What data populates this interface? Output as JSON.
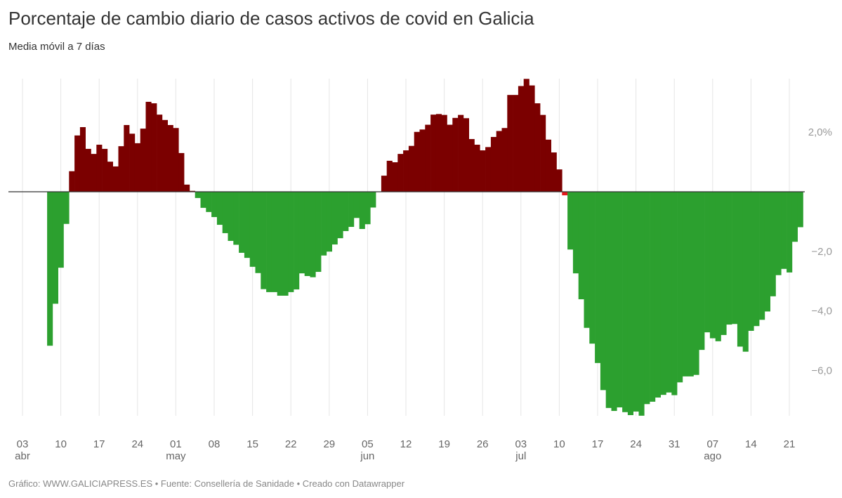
{
  "title": "Porcentaje de cambio diario de casos activos de covid en Galicia",
  "subtitle": "Media móvil a 7 días",
  "footer": "Gráfico: WWW.GALICIAPRESS.ES • Fuente: Consellería de Sanidade • Creado con Datawrapper",
  "colors": {
    "positive": "#7b0000",
    "negative": "#2ca02f",
    "near_zero": "#e31a1c",
    "grid": "#e5e5e5",
    "zero_line": "#333333"
  },
  "chart_data": {
    "type": "bar",
    "title": "Porcentaje de cambio diario de casos activos de covid en Galicia",
    "subtitle": "Media móvil a 7 días",
    "xlabel": "",
    "ylabel": "",
    "ylim": [
      -7.6,
      3.8
    ],
    "grid": true,
    "x_start": "08 abr",
    "x_axis_start_day_offset": 5,
    "x_ticks": [
      {
        "day": 0,
        "label": "03",
        "month": "abr"
      },
      {
        "day": 7,
        "label": "10"
      },
      {
        "day": 14,
        "label": "17"
      },
      {
        "day": 21,
        "label": "24"
      },
      {
        "day": 28,
        "label": "01",
        "month": "may"
      },
      {
        "day": 35,
        "label": "08"
      },
      {
        "day": 42,
        "label": "15"
      },
      {
        "day": 49,
        "label": "22"
      },
      {
        "day": 56,
        "label": "29"
      },
      {
        "day": 63,
        "label": "05",
        "month": "jun"
      },
      {
        "day": 70,
        "label": "12"
      },
      {
        "day": 77,
        "label": "19"
      },
      {
        "day": 84,
        "label": "26"
      },
      {
        "day": 91,
        "label": "03",
        "month": "jul"
      },
      {
        "day": 98,
        "label": "10"
      },
      {
        "day": 105,
        "label": "17"
      },
      {
        "day": 112,
        "label": "24"
      },
      {
        "day": 119,
        "label": "31"
      },
      {
        "day": 126,
        "label": "07",
        "month": "ago"
      },
      {
        "day": 133,
        "label": "14"
      },
      {
        "day": 140,
        "label": "21"
      }
    ],
    "y_ticks": [
      {
        "value": 2,
        "label": "2,0%"
      },
      {
        "value": -2,
        "label": "−2,0"
      },
      {
        "value": -4,
        "label": "−4,0"
      },
      {
        "value": -6,
        "label": "−6,0"
      }
    ],
    "values": [
      -5.17,
      -3.76,
      -2.55,
      -1.08,
      0.69,
      1.89,
      2.17,
      1.44,
      1.27,
      1.58,
      1.44,
      1.01,
      0.85,
      1.53,
      2.24,
      1.95,
      1.63,
      2.12,
      3.02,
      2.97,
      2.59,
      2.41,
      2.24,
      2.14,
      1.3,
      0.24,
      0.03,
      -0.21,
      -0.54,
      -0.68,
      -0.85,
      -1.11,
      -1.39,
      -1.65,
      -1.78,
      -2.05,
      -2.22,
      -2.52,
      -2.73,
      -3.27,
      -3.37,
      -3.37,
      -3.49,
      -3.49,
      -3.37,
      -3.28,
      -2.74,
      -2.83,
      -2.87,
      -2.69,
      -2.14,
      -2.01,
      -1.77,
      -1.56,
      -1.32,
      -1.18,
      -0.88,
      -1.25,
      -1.09,
      -0.53,
      0.0,
      0.54,
      1.04,
      0.99,
      1.27,
      1.39,
      1.54,
      2.01,
      2.09,
      2.25,
      2.59,
      2.61,
      2.58,
      2.25,
      2.48,
      2.58,
      2.47,
      1.77,
      1.58,
      1.39,
      1.5,
      1.84,
      2.04,
      2.14,
      3.25,
      3.25,
      3.55,
      3.79,
      3.57,
      2.97,
      2.58,
      1.75,
      1.32,
      0.75,
      -0.12,
      -1.94,
      -2.74,
      -3.61,
      -4.57,
      -5.1,
      -5.75,
      -6.66,
      -7.26,
      -7.36,
      -7.24,
      -7.4,
      -7.5,
      -7.38,
      -7.52,
      -7.13,
      -7.05,
      -6.91,
      -6.82,
      -6.74,
      -6.83,
      -6.4,
      -6.2,
      -6.2,
      -6.15,
      -5.31,
      -4.72,
      -4.92,
      -5.02,
      -4.81,
      -4.46,
      -4.44,
      -5.2,
      -5.37,
      -4.67,
      -4.51,
      -4.3,
      -4.02,
      -3.51,
      -2.8,
      -2.59,
      -2.71,
      -1.68,
      -1.19
    ]
  }
}
